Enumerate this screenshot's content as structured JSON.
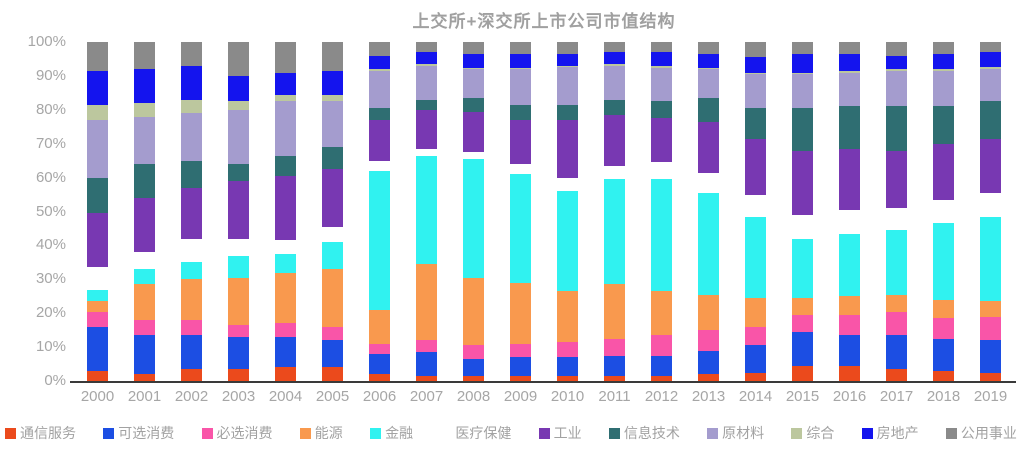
{
  "chart_data": {
    "type": "bar",
    "subtype": "stacked-100-percent",
    "title": "上交所+深交所上市公司市值结构",
    "xlabel": "",
    "ylabel": "",
    "grid": false,
    "legend_position": "bottom",
    "y_axis": {
      "min": 0,
      "max": 100,
      "ticks": [
        "100%",
        "90%",
        "80%",
        "70%",
        "60%",
        "50%",
        "40%",
        "30%",
        "20%",
        "10%",
        "0%"
      ]
    },
    "categories": [
      "2000",
      "2001",
      "2002",
      "2003",
      "2004",
      "2005",
      "2006",
      "2007",
      "2008",
      "2009",
      "2010",
      "2011",
      "2012",
      "2013",
      "2014",
      "2015",
      "2016",
      "2017",
      "2018",
      "2019"
    ],
    "series": [
      {
        "name": "通信服务",
        "color": "#EB4A1C",
        "values": [
          3,
          2,
          3.5,
          3.5,
          4,
          4,
          2,
          1.5,
          1.5,
          1.5,
          1.5,
          1.5,
          1.5,
          2,
          2.5,
          4.5,
          4.5,
          3.5,
          3,
          2.5
        ]
      },
      {
        "name": "可选消费",
        "color": "#1C4EE3",
        "values": [
          13,
          11.5,
          10,
          9.5,
          9,
          8,
          6,
          7,
          5,
          5.5,
          5.5,
          6,
          6,
          7,
          8,
          10,
          9,
          10,
          9.5,
          9.5
        ]
      },
      {
        "name": "必选消费",
        "color": "#F955A8",
        "values": [
          4.5,
          4.5,
          4.5,
          3.5,
          4,
          4,
          3,
          3.5,
          4,
          4,
          4.5,
          5,
          6,
          6,
          5.5,
          5,
          6,
          7,
          6,
          7
        ]
      },
      {
        "name": "能源",
        "color": "#F9994E",
        "values": [
          3,
          10.5,
          12,
          14,
          15,
          17,
          10,
          22.5,
          20,
          18,
          15,
          16,
          13,
          10.5,
          8.5,
          5,
          5.5,
          5,
          5.5,
          4.5
        ]
      },
      {
        "name": "金融",
        "color": "#30F2F0",
        "values": [
          3.5,
          4.5,
          5,
          6.5,
          5.5,
          8,
          41,
          32,
          35,
          32,
          29.5,
          31,
          33,
          30,
          24,
          17.5,
          18.5,
          19,
          22.5,
          25
        ]
      },
      {
        "name": "医疗保健",
        "color": "#FFFFFF",
        "values": [
          6.5,
          5,
          7,
          5,
          4,
          4.5,
          3,
          2,
          2,
          3,
          4,
          4,
          5,
          6,
          6.5,
          7,
          7,
          6.5,
          7,
          7
        ]
      },
      {
        "name": "工业",
        "color": "#7838B2",
        "values": [
          16,
          16,
          15,
          17,
          19,
          17,
          12,
          11.5,
          12,
          13,
          17,
          15,
          13,
          15,
          16.5,
          19,
          18,
          17,
          16.5,
          16
        ]
      },
      {
        "name": "信息技术",
        "color": "#2F6E72",
        "values": [
          10.5,
          10,
          8,
          5,
          6,
          6.5,
          3.5,
          3,
          4,
          4.5,
          4.5,
          4.5,
          5,
          7,
          9,
          12.5,
          12.5,
          13,
          11,
          11
        ]
      },
      {
        "name": "原材料",
        "color": "#A49CCE",
        "values": [
          17,
          14,
          14,
          16,
          16,
          13.5,
          11,
          10,
          8.5,
          10.5,
          11,
          10,
          10,
          8.5,
          10,
          10,
          10,
          10.5,
          10.5,
          9.5
        ]
      },
      {
        "name": "综合",
        "color": "#BCC79E",
        "values": [
          4.5,
          4,
          4,
          2.5,
          2,
          2,
          0.5,
          0.5,
          0.5,
          0.5,
          0.5,
          0.5,
          0.5,
          0.5,
          0.5,
          0.5,
          0.5,
          0.5,
          0.5,
          0.5
        ]
      },
      {
        "name": "房地产",
        "color": "#1414EE",
        "values": [
          10,
          10,
          10,
          7.5,
          6.5,
          7,
          4,
          3.5,
          4,
          4,
          3.5,
          3.5,
          4,
          4,
          4.5,
          5.5,
          5,
          4,
          4.5,
          4.5
        ]
      },
      {
        "name": "公用事业",
        "color": "#8A8A8A",
        "values": [
          8.5,
          8,
          7,
          10,
          9,
          8.5,
          4,
          3,
          3.5,
          3.5,
          3.5,
          3,
          3,
          3.5,
          4.5,
          3.5,
          3.5,
          4,
          3.5,
          3
        ]
      }
    ],
    "colors": {
      "title_text": "#A0A0A0",
      "axis_text": "#A6A6A6",
      "legend_text": "#A2A2A2",
      "axis_line": "#3A3A3A",
      "background": "#FFFFFF"
    }
  }
}
